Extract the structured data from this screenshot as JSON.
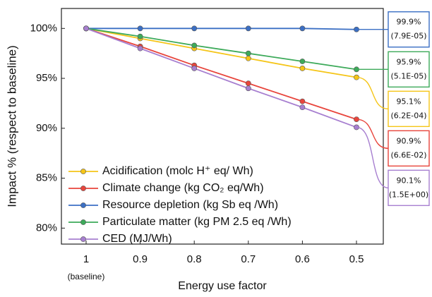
{
  "chart_data": {
    "type": "line",
    "y_label": "Impact % (respect to baseline)",
    "x_label": "Energy use factor",
    "x_annotation": "(baseline)",
    "categories": [
      "1",
      "0.9",
      "0.8",
      "0.7",
      "0.6",
      "0.5"
    ],
    "ylim": [
      78.4,
      102
    ],
    "yticks": [
      {
        "value": 80,
        "label": "80%"
      },
      {
        "value": 85,
        "label": "85%"
      },
      {
        "value": 90,
        "label": "90%"
      },
      {
        "value": 95,
        "label": "95%"
      },
      {
        "value": 100,
        "label": "100%"
      }
    ],
    "legend": "lower-left",
    "series": [
      {
        "name": "Acidification (molc H⁺ eq/ Wh)",
        "color": "#f5c518",
        "values": [
          100,
          99.0,
          98.0,
          97.0,
          96.0,
          95.1
        ],
        "value_labels": [
          null,
          null,
          null,
          null,
          null,
          "95.1%"
        ],
        "note": "(6.2E-04)"
      },
      {
        "name": "Climate change (kg CO₂ eq/Wh)",
        "color": "#e8453c",
        "values": [
          100,
          98.2,
          96.3,
          94.5,
          92.7,
          90.9
        ],
        "value_labels": [
          null,
          null,
          null,
          null,
          null,
          "90.9%"
        ],
        "note": "(6.6E-02)"
      },
      {
        "name": "Resource depletion (kg Sb eq /Wh)",
        "color": "#3b6fc4",
        "values": [
          100,
          100,
          100,
          100,
          100,
          99.9
        ],
        "value_labels": [
          null,
          null,
          null,
          null,
          null,
          "99.9%"
        ],
        "note": "(7.9E-05)"
      },
      {
        "name": "Particulate matter (kg PM 2.5 eq /Wh)",
        "color": "#3daa5a",
        "values": [
          100,
          99.2,
          98.3,
          97.5,
          96.7,
          95.9
        ],
        "value_labels": [
          null,
          null,
          null,
          null,
          null,
          "95.9%"
        ],
        "note": "(5.1E-05)"
      },
      {
        "name": "CED (MJ/Wh)",
        "color": "#a77fd0",
        "values": [
          100,
          98.0,
          96.0,
          94.0,
          92.1,
          90.1
        ],
        "value_labels": [
          null,
          null,
          null,
          null,
          null,
          "90.1%"
        ],
        "note": "(1.5E+00)"
      }
    ]
  }
}
